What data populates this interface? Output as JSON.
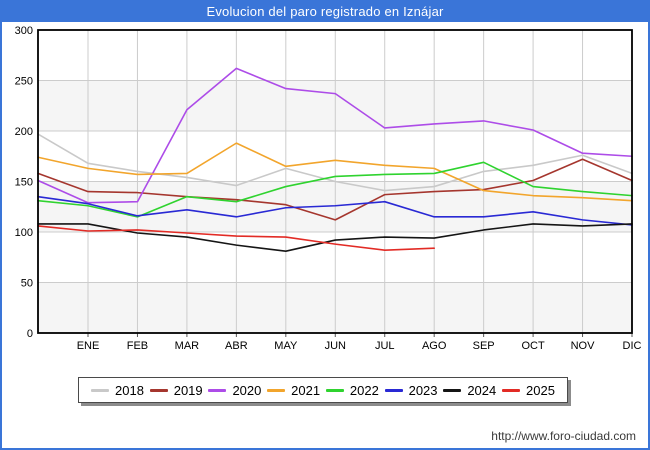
{
  "window": {
    "title": "Evolucion del paro registrado en Iznájar"
  },
  "footer": {
    "url": "http://www.foro-ciudad.com"
  },
  "colors": {
    "titlebar_bg": "#3a75d8",
    "frame_border": "#3a75d8",
    "band": "#f5f5f5",
    "grid": "#cccccc",
    "plot_border": "#000000",
    "footer_text": "#3a3a3a"
  },
  "chart_data": {
    "type": "line",
    "title": "Evolucion del paro registrado en Iznájar",
    "xlabel": "",
    "ylabel": "",
    "ylim": [
      0,
      300
    ],
    "y_ticks": [
      0,
      50,
      100,
      150,
      200,
      250,
      300
    ],
    "grid": true,
    "legend_position": "bottom",
    "x_categories": [
      "ENE",
      "FEB",
      "MAR",
      "ABR",
      "MAY",
      "JUN",
      "JUL",
      "AGO",
      "SEP",
      "OCT",
      "NOV",
      "DIC"
    ],
    "series": [
      {
        "name": "2018",
        "color": "#c9c9c9",
        "start_value": 197,
        "values": [
          168,
          160,
          154,
          146,
          163,
          150,
          141,
          145,
          160,
          166,
          176,
          158
        ]
      },
      {
        "name": "2019",
        "color": "#a5362e",
        "start_value": 158,
        "values": [
          140,
          139,
          135,
          132,
          127,
          112,
          137,
          140,
          142,
          151,
          172,
          151
        ]
      },
      {
        "name": "2020",
        "color": "#ad4ce8",
        "start_value": 151,
        "values": [
          129,
          130,
          221,
          262,
          242,
          237,
          203,
          207,
          210,
          201,
          178,
          175
        ]
      },
      {
        "name": "2021",
        "color": "#f2a52c",
        "start_value": 174,
        "values": [
          163,
          157,
          158,
          188,
          165,
          171,
          166,
          163,
          141,
          136,
          134,
          131
        ]
      },
      {
        "name": "2022",
        "color": "#2fd32f",
        "start_value": 131,
        "values": [
          126,
          115,
          135,
          130,
          145,
          155,
          157,
          158,
          169,
          145,
          140,
          136
        ]
      },
      {
        "name": "2023",
        "color": "#2929d4",
        "start_value": 135,
        "values": [
          128,
          116,
          122,
          115,
          124,
          126,
          130,
          115,
          115,
          120,
          112,
          107
        ]
      },
      {
        "name": "2024",
        "color": "#151515",
        "start_value": 108,
        "values": [
          108,
          99,
          95,
          87,
          81,
          92,
          95,
          94,
          102,
          108,
          106,
          108
        ]
      },
      {
        "name": "2025",
        "color": "#e22b25",
        "start_value": 106,
        "values": [
          101,
          102,
          99,
          96,
          95,
          88,
          82,
          84,
          null,
          null,
          null,
          null
        ]
      }
    ]
  }
}
